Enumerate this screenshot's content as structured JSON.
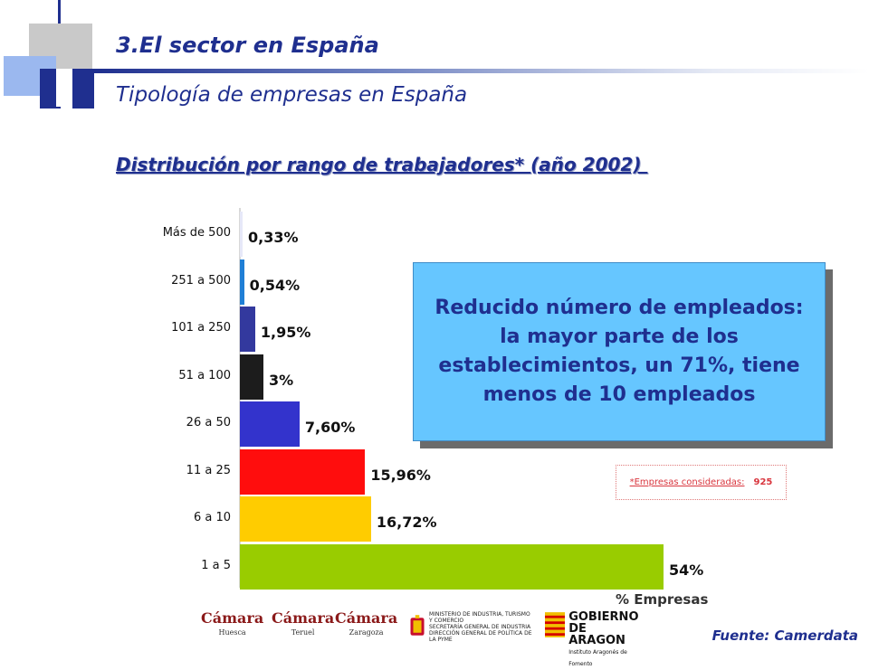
{
  "slide": {
    "title": "3.El sector en España",
    "subtitle": "Tipología de empresas en España"
  },
  "chart_data": {
    "type": "bar",
    "orientation": "horizontal",
    "title": "Distribución por rango de trabajadores* (año 2002) ",
    "xlabel": "% Empresas",
    "categories": [
      "Más de 500",
      "251 a 500",
      "101 a 250",
      "51 a 100",
      "26 a 50",
      "11 a 25",
      "6 a 10",
      "1 a 5"
    ],
    "values": [
      0.33,
      0.54,
      1.95,
      3,
      7.6,
      15.96,
      16.72,
      54
    ],
    "value_labels": [
      "0,33%",
      "0,54%",
      "1,95%",
      "3%",
      "7,60%",
      "15,96%",
      "16,72%",
      "54%"
    ],
    "colors": [
      "#e6e8f8",
      "#1f7fd6",
      "#33399e",
      "#1c1c1c",
      "#3333cc",
      "#ff0d0d",
      "#ffcc00",
      "#99cc00"
    ],
    "xlim": [
      0,
      54
    ],
    "grid": false,
    "legend": "none"
  },
  "callout": {
    "text": "Reducido número de empleados: la mayor parte de los establecimientos, un 71%, tiene menos de 10 empleados"
  },
  "note": {
    "label": "*Empresas consideradas:",
    "value": "925"
  },
  "source": "Fuente: Camerdata",
  "logos": {
    "camara_huesca": {
      "name": "Cámara",
      "city": "Huesca"
    },
    "camara_teruel": {
      "name": "Cámara",
      "city": "Teruel"
    },
    "camara_zaragoza": {
      "name": "Cámara",
      "city": "Zaragoza"
    },
    "ministerio": {
      "line1": "MINISTERIO DE INDUSTRIA, TURISMO Y COMERCIO",
      "line2": "SECRETARÍA GENERAL DE INDUSTRIA",
      "line3": "DIRECCIÓN GENERAL DE POLÍTICA DE LA PYME"
    },
    "aragon": {
      "line1": "GOBIERNO",
      "line2": "DE ARAGON",
      "line3": "Instituto Aragonés de Fomento"
    }
  }
}
